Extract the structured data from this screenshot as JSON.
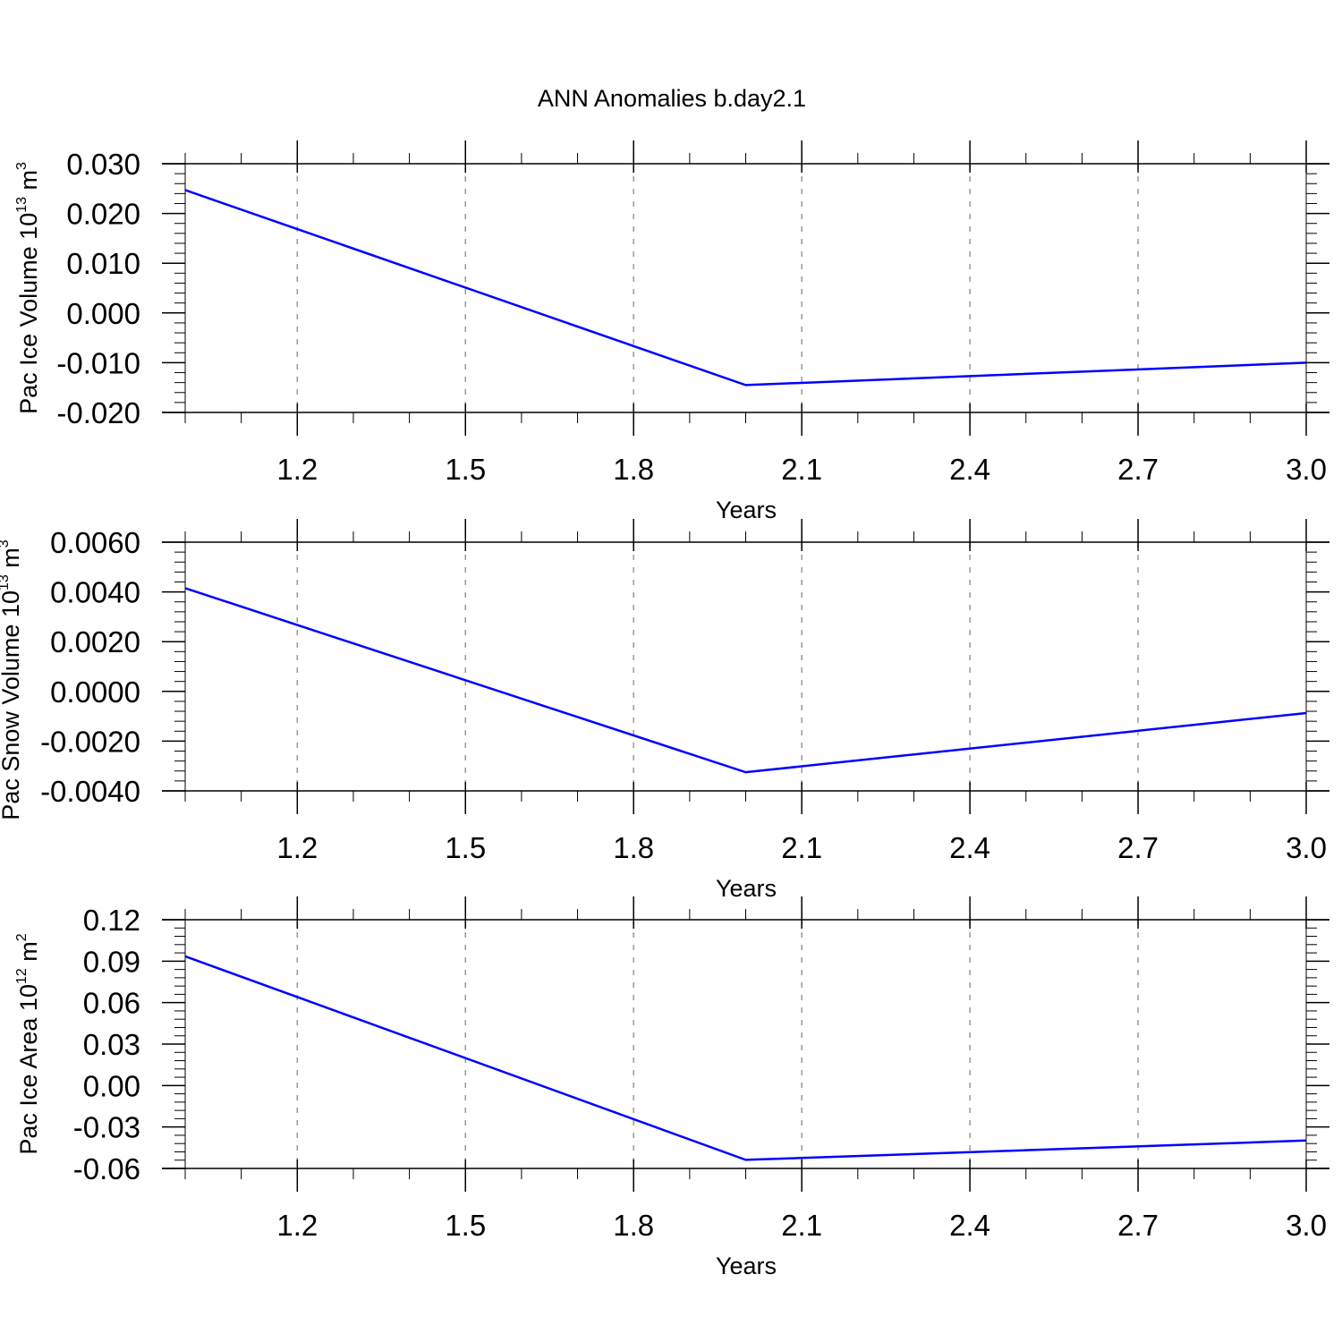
{
  "title": "ANN Anomalies b.day2.1",
  "chart_data": [
    {
      "type": "line",
      "ylabel": "Pac Ice Volume 10",
      "ylabel_exp": "13",
      "ylabel_unit": " m",
      "ylabel_unit_exp": "3",
      "xlabel": "Years",
      "xlim": [
        1.0,
        3.0
      ],
      "ylim": [
        -0.02,
        0.03
      ],
      "xticks": [
        "1.2",
        "1.5",
        "1.8",
        "2.1",
        "2.4",
        "2.7",
        "3.0"
      ],
      "yticks": [
        "0.030",
        "0.020",
        "0.010",
        "0.000",
        "-0.010",
        "-0.020"
      ],
      "x": [
        1,
        2,
        3
      ],
      "series": [
        {
          "values": [
            0.0247,
            -0.0145,
            -0.01
          ],
          "color": "#0000ff"
        }
      ],
      "grid": "vertical dashed"
    },
    {
      "type": "line",
      "ylabel": "Pac Snow Volume 10",
      "ylabel_exp": "13",
      "ylabel_unit": " m",
      "ylabel_unit_exp": "3",
      "xlabel": "Years",
      "xlim": [
        1.0,
        3.0
      ],
      "ylim": [
        -0.004,
        0.006
      ],
      "xticks": [
        "1.2",
        "1.5",
        "1.8",
        "2.1",
        "2.4",
        "2.7",
        "3.0"
      ],
      "yticks": [
        "0.0060",
        "0.0040",
        "0.0020",
        "0.0000",
        "-0.0020",
        "-0.0040"
      ],
      "x": [
        1,
        2,
        3
      ],
      "series": [
        {
          "values": [
            0.00415,
            -0.00325,
            -0.00087
          ],
          "color": "#0000ff"
        }
      ],
      "grid": "vertical dashed"
    },
    {
      "type": "line",
      "ylabel": "Pac Ice Area 10",
      "ylabel_exp": "12",
      "ylabel_unit": " m",
      "ylabel_unit_exp": "2",
      "xlabel": "Years",
      "xlim": [
        1.0,
        3.0
      ],
      "ylim": [
        -0.06,
        0.12
      ],
      "xticks": [
        "1.2",
        "1.5",
        "1.8",
        "2.1",
        "2.4",
        "2.7",
        "3.0"
      ],
      "yticks": [
        "0.12",
        "0.09",
        "0.06",
        "0.03",
        "0.00",
        "-0.03",
        "-0.06"
      ],
      "x": [
        1,
        2,
        3
      ],
      "series": [
        {
          "values": [
            0.0935,
            -0.0538,
            -0.0398
          ],
          "color": "#0000ff"
        }
      ],
      "grid": "vertical dashed"
    }
  ]
}
